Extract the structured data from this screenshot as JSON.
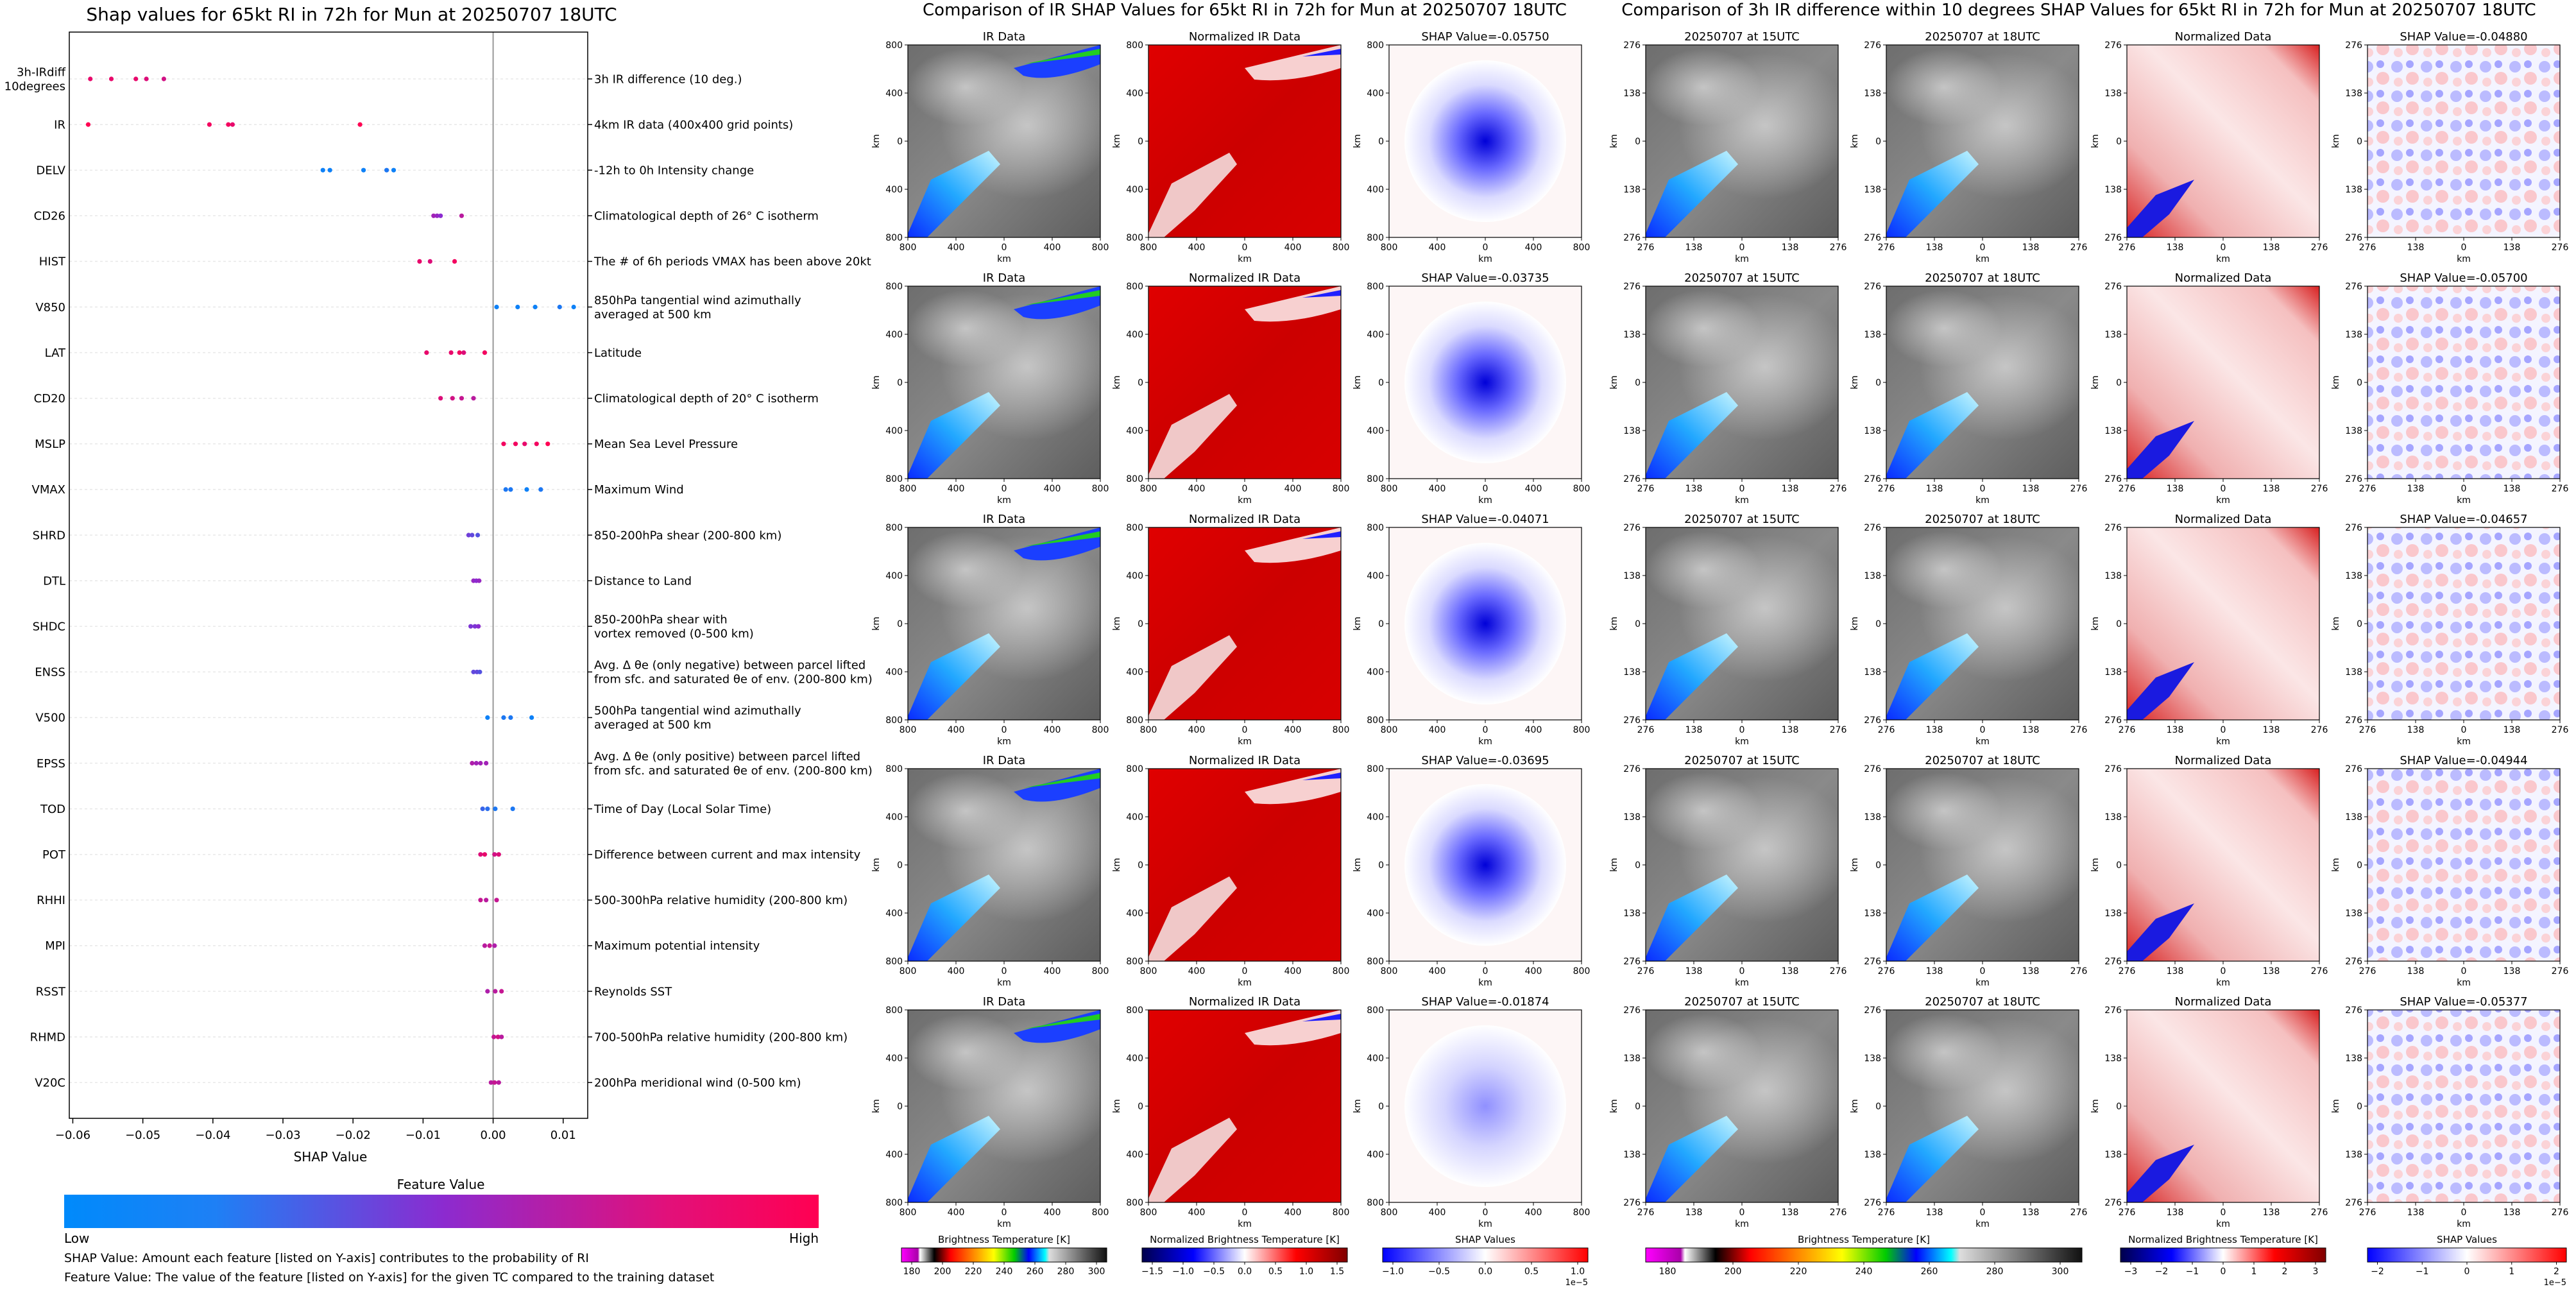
{
  "colors": {
    "low": "#008afb",
    "mid": "#8b2bd0",
    "high": "#ff0052",
    "axis": "#000000",
    "zero_line": "#999999",
    "row_line": "#e8e8e8"
  },
  "left": {
    "title": "Shap values for 65kt RI in 72h for Mun at 20250707 18UTC",
    "xlabel": "SHAP Value",
    "colorbar_title": "Feature Value",
    "colorbar_low": "Low",
    "colorbar_high": "High",
    "note1": "SHAP Value: Amount each feature [listed on Y-axis] contributes to the probability of RI",
    "note2": "Feature Value: The value of the feature [listed on Y-axis] for the given TC compared to the training dataset"
  },
  "chart_data": [
    {
      "type": "scatter",
      "title": "Shap values for 65kt RI in 72h for Mun at 20250707 18UTC",
      "xlabel": "SHAP Value",
      "xlim": [
        -0.0605,
        0.0135
      ],
      "xticks": [
        -0.06,
        -0.05,
        -0.04,
        -0.03,
        -0.02,
        -0.01,
        0.0,
        0.01
      ],
      "xtick_labels": [
        "−0.06",
        "−0.05",
        "−0.04",
        "−0.03",
        "−0.02",
        "−0.01",
        "0.00",
        "0.01"
      ],
      "features": [
        {
          "name": "3h-IRdiff\n10degrees",
          "description": "3h IR difference (10 deg.)",
          "points": [
            [
              -0.0575,
              0.9
            ],
            [
              -0.0545,
              0.9
            ],
            [
              -0.051,
              0.9
            ],
            [
              -0.0495,
              0.85
            ],
            [
              -0.047,
              0.8
            ]
          ]
        },
        {
          "name": "IR",
          "description": "4km IR data (400x400 grid points)",
          "points": [
            [
              -0.0578,
              1.0
            ],
            [
              -0.0405,
              0.95
            ],
            [
              -0.0378,
              0.95
            ],
            [
              -0.0372,
              0.9
            ],
            [
              -0.019,
              1.0
            ]
          ]
        },
        {
          "name": "DELV",
          "description": "-12h to 0h Intensity change",
          "points": [
            [
              -0.0243,
              0.05
            ],
            [
              -0.0233,
              0.05
            ],
            [
              -0.0185,
              0.05
            ],
            [
              -0.0152,
              0.1
            ],
            [
              -0.0142,
              0.05
            ]
          ]
        },
        {
          "name": "CD26",
          "description": "Climatological depth of 26° C isotherm",
          "points": [
            [
              -0.0085,
              0.6
            ],
            [
              -0.008,
              0.55
            ],
            [
              -0.0075,
              0.5
            ],
            [
              -0.0045,
              0.7
            ]
          ]
        },
        {
          "name": "HIST",
          "description": "The # of 6h periods VMAX has been above 20kt",
          "points": [
            [
              -0.0105,
              0.9
            ],
            [
              -0.009,
              0.85
            ],
            [
              -0.0055,
              0.95
            ]
          ]
        },
        {
          "name": "V850",
          "description": "850hPa tangential wind azimuthally\naveraged at 500 km",
          "points": [
            [
              0.0005,
              0.05
            ],
            [
              0.0035,
              0.05
            ],
            [
              0.006,
              0.05
            ],
            [
              0.0095,
              0.1
            ],
            [
              0.0115,
              0.05
            ]
          ]
        },
        {
          "name": "LAT",
          "description": "Latitude",
          "points": [
            [
              -0.0095,
              0.9
            ],
            [
              -0.006,
              0.9
            ],
            [
              -0.0048,
              0.95
            ],
            [
              -0.0042,
              0.85
            ],
            [
              -0.0012,
              0.95
            ]
          ]
        },
        {
          "name": "CD20",
          "description": "Climatological depth of 20° C isotherm",
          "points": [
            [
              -0.0075,
              0.85
            ],
            [
              -0.0058,
              0.8
            ],
            [
              -0.0045,
              0.75
            ],
            [
              -0.0028,
              0.7
            ]
          ]
        },
        {
          "name": "MSLP",
          "description": "Mean Sea Level Pressure",
          "points": [
            [
              0.0015,
              0.95
            ],
            [
              0.0032,
              0.95
            ],
            [
              0.0045,
              0.9
            ],
            [
              0.0062,
              0.95
            ],
            [
              0.0078,
              1.0
            ]
          ]
        },
        {
          "name": "VMAX",
          "description": "Maximum Wind",
          "points": [
            [
              0.0018,
              0.1
            ],
            [
              0.0025,
              0.1
            ],
            [
              0.0048,
              0.05
            ],
            [
              0.0068,
              0.1
            ]
          ]
        },
        {
          "name": "SHRD",
          "description": "850-200hPa shear (200-800 km)",
          "points": [
            [
              -0.0035,
              0.4
            ],
            [
              -0.003,
              0.35
            ],
            [
              -0.0022,
              0.3
            ]
          ]
        },
        {
          "name": "DTL",
          "description": "Distance to Land",
          "points": [
            [
              -0.0028,
              0.55
            ],
            [
              -0.0024,
              0.5
            ],
            [
              -0.002,
              0.55
            ]
          ]
        },
        {
          "name": "SHDC",
          "description": "850-200hPa shear with\nvortex removed (0-500 km)",
          "points": [
            [
              -0.0032,
              0.45
            ],
            [
              -0.0026,
              0.45
            ],
            [
              -0.0021,
              0.5
            ]
          ]
        },
        {
          "name": "ENSS",
          "description": "Avg. Δ θe (only negative) between parcel lifted\nfrom sfc. and saturated θe of env. (200-800 km)",
          "points": [
            [
              -0.0028,
              0.35
            ],
            [
              -0.0023,
              0.35
            ],
            [
              -0.0019,
              0.3
            ]
          ]
        },
        {
          "name": "V500",
          "description": "500hPa tangential wind azimuthally\naveraged at 500 km",
          "points": [
            [
              -0.0008,
              0.05
            ],
            [
              0.0015,
              0.1
            ],
            [
              0.0025,
              0.1
            ],
            [
              0.0055,
              0.05
            ]
          ]
        },
        {
          "name": "EPSS",
          "description": "Avg. Δ θe (only positive) between parcel lifted\nfrom sfc. and saturated θe of env. (200-800 km)",
          "points": [
            [
              -0.003,
              0.65
            ],
            [
              -0.0024,
              0.6
            ],
            [
              -0.0018,
              0.6
            ],
            [
              -0.001,
              0.6
            ]
          ]
        },
        {
          "name": "TOD",
          "description": "Time of Day (Local Solar Time)",
          "points": [
            [
              -0.0015,
              0.2
            ],
            [
              -0.0008,
              0.15
            ],
            [
              0.0003,
              0.1
            ],
            [
              0.0028,
              0.1
            ]
          ]
        },
        {
          "name": "POT",
          "description": "Difference between current and max intensity",
          "points": [
            [
              -0.0018,
              0.85
            ],
            [
              -0.0012,
              0.9
            ],
            [
              0.0002,
              0.8
            ],
            [
              0.0008,
              0.85
            ]
          ]
        },
        {
          "name": "RHHI",
          "description": "500-300hPa relative humidity (200-800 km)",
          "points": [
            [
              -0.0018,
              0.75
            ],
            [
              -0.001,
              0.7
            ],
            [
              0.0005,
              0.75
            ]
          ]
        },
        {
          "name": "MPI",
          "description": "Maximum potential intensity",
          "points": [
            [
              -0.0012,
              0.7
            ],
            [
              -0.0005,
              0.75
            ],
            [
              0.0002,
              0.65
            ]
          ]
        },
        {
          "name": "RSST",
          "description": "Reynolds SST",
          "points": [
            [
              -0.0008,
              0.65
            ],
            [
              0.0003,
              0.7
            ],
            [
              0.0012,
              0.75
            ]
          ]
        },
        {
          "name": "RHMD",
          "description": "700-500hPa relative humidity (200-800 km)",
          "points": [
            [
              0.0001,
              0.75
            ],
            [
              0.0007,
              0.8
            ],
            [
              0.0012,
              0.7
            ]
          ]
        },
        {
          "name": "V20C",
          "description": "200hPa meridional wind (0-500 km)",
          "points": [
            [
              -0.0003,
              0.7
            ],
            [
              0.0002,
              0.75
            ],
            [
              0.0008,
              0.7
            ]
          ]
        }
      ]
    },
    {
      "type": "heatmap",
      "title": "Comparison of IR SHAP Values for 65kt RI in 72h for Mun at 20250707 18UTC",
      "column_titles": [
        "IR Data",
        "Normalized IR Data"
      ],
      "shap_titles": [
        "SHAP Value=-0.05750",
        "SHAP Value=-0.03735",
        "SHAP Value=-0.04071",
        "SHAP Value=-0.03695",
        "SHAP Value=-0.01874"
      ],
      "axis_label": "km",
      "xtick_labels": [
        "800",
        "400",
        "0",
        "400",
        "800"
      ],
      "ytick_labels": [
        "800",
        "400",
        "0",
        "400",
        "800"
      ],
      "colorbars": [
        {
          "label": "Brightness Temperature [K]",
          "ticks": [
            "180",
            "200",
            "220",
            "240",
            "260",
            "280",
            "300"
          ],
          "scale": ""
        },
        {
          "label": "Normalized Brightness Temperature [K]",
          "ticks": [
            "−1.5",
            "−1.0",
            "−0.5",
            "0.0",
            "0.5",
            "1.0",
            "1.5"
          ],
          "scale": ""
        },
        {
          "label": "SHAP Values",
          "ticks": [
            "−1.0",
            "−0.5",
            "0.0",
            "0.5",
            "1.0"
          ],
          "scale": "1e−5"
        }
      ]
    },
    {
      "type": "heatmap",
      "title": "Comparison of 3h IR difference within 10 degrees SHAP Values for 65kt RI in 72h for Mun at 20250707 18UTC",
      "column_titles": [
        "20250707 at 15UTC",
        "20250707 at 18UTC",
        "Normalized Data"
      ],
      "shap_titles": [
        "SHAP Value=-0.04880",
        "SHAP Value=-0.05700",
        "SHAP Value=-0.04657",
        "SHAP Value=-0.04944",
        "SHAP Value=-0.05377"
      ],
      "axis_label": "km",
      "xtick_labels": [
        "276",
        "138",
        "0",
        "138",
        "276"
      ],
      "ytick_labels": [
        "276",
        "138",
        "0",
        "138",
        "276"
      ],
      "colorbars": [
        {
          "label": "Brightness Temperature [K]",
          "ticks": [
            "180",
            "200",
            "220",
            "240",
            "260",
            "280",
            "300"
          ],
          "scale": ""
        },
        {
          "label": "Normalized Brightness Temperature [K]",
          "ticks": [
            "−3",
            "−2",
            "−1",
            "0",
            "1",
            "2",
            "3"
          ],
          "scale": ""
        },
        {
          "label": "SHAP Values",
          "ticks": [
            "−2",
            "−1",
            "0",
            "1",
            "2"
          ],
          "scale": "1e−5"
        }
      ]
    }
  ]
}
